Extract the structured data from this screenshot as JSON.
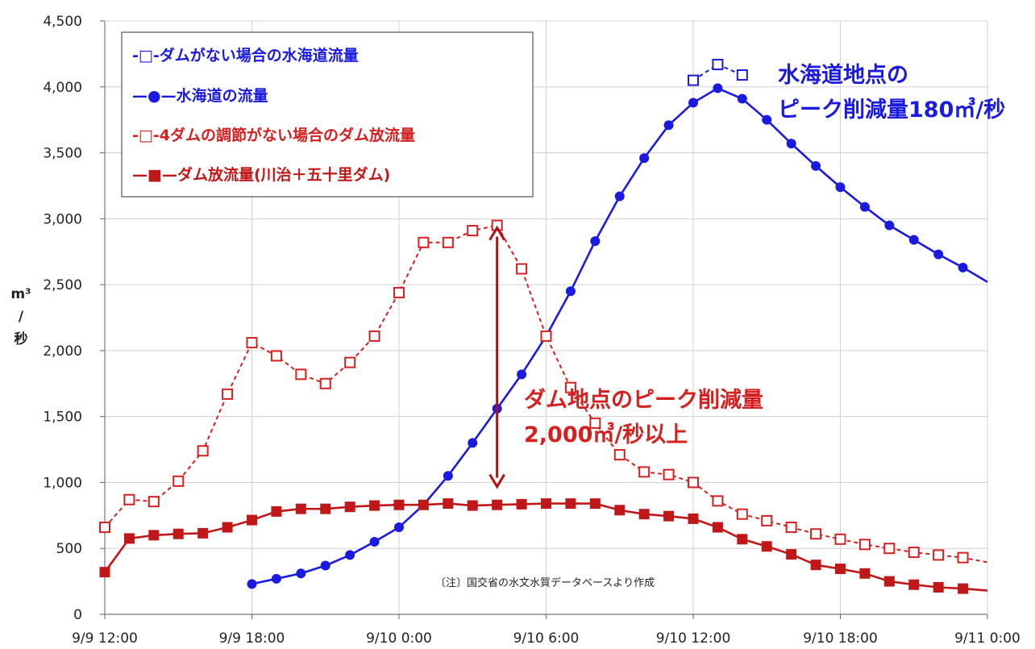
{
  "chart_data": {
    "type": "line",
    "ylabel_lines": [
      "m³",
      "/",
      "秒"
    ],
    "ylim": [
      0,
      4500
    ],
    "yticks": [
      0,
      500,
      1000,
      1500,
      2000,
      2500,
      3000,
      3500,
      4000,
      4500
    ],
    "ytick_labels": [
      "0",
      "500",
      "1,000",
      "1,500",
      "2,000",
      "2,500",
      "3,000",
      "3,500",
      "4,000",
      "4,500"
    ],
    "xlim": [
      "9/9 12:00",
      "9/11 0:00"
    ],
    "xtick_labels": [
      "9/9 12:00",
      "9/9 18:00",
      "9/10 0:00",
      "9/10 6:00",
      "9/10 12:00",
      "9/10 18:00",
      "9/11 0:00"
    ],
    "grid": true,
    "legend_position": "top-left",
    "series": [
      {
        "name": "ダムがない場合の水海道流量",
        "color": "#1a1ae0",
        "style": "dashed",
        "marker": "open-square",
        "x": [
          "9/10 12:00",
          "9/10 13:00",
          "9/10 14:00"
        ],
        "values": [
          4050,
          4170,
          4090
        ]
      },
      {
        "name": "水海道の流量",
        "color": "#1a1ae0",
        "style": "solid",
        "marker": "filled-circle",
        "x": [
          "9/9 18:00",
          "9/9 19:00",
          "9/9 20:00",
          "9/9 21:00",
          "9/9 22:00",
          "9/9 23:00",
          "9/10 0:00",
          "9/10 1:00",
          "9/10 2:00",
          "9/10 3:00",
          "9/10 4:00",
          "9/10 5:00",
          "9/10 6:00",
          "9/10 7:00",
          "9/10 8:00",
          "9/10 9:00",
          "9/10 10:00",
          "9/10 11:00",
          "9/10 12:00",
          "9/10 13:00",
          "9/10 14:00",
          "9/10 15:00",
          "9/10 16:00",
          "9/10 17:00",
          "9/10 18:00",
          "9/10 19:00",
          "9/10 20:00",
          "9/10 21:00",
          "9/10 22:00",
          "9/10 23:00",
          "9/11 0:00"
        ],
        "values": [
          230,
          270,
          310,
          370,
          450,
          550,
          660,
          830,
          1050,
          1300,
          1560,
          1820,
          2110,
          2450,
          2830,
          3170,
          3460,
          3710,
          3880,
          3990,
          3910,
          3750,
          3570,
          3400,
          3240,
          3090,
          2950,
          2840,
          2730,
          2630,
          2520
        ],
        "markers_until": "9/10 23:00"
      },
      {
        "name": "4ダムの調節がない場合のダム放流量",
        "color": "#d42020",
        "style": "dashed",
        "marker": "open-square",
        "x": [
          "9/9 12:00",
          "9/9 13:00",
          "9/9 14:00",
          "9/9 15:00",
          "9/9 16:00",
          "9/9 17:00",
          "9/9 18:00",
          "9/9 19:00",
          "9/9 20:00",
          "9/9 21:00",
          "9/9 22:00",
          "9/9 23:00",
          "9/10 0:00",
          "9/10 1:00",
          "9/10 2:00",
          "9/10 3:00",
          "9/10 4:00",
          "9/10 5:00",
          "9/10 6:00",
          "9/10 7:00",
          "9/10 8:00",
          "9/10 9:00",
          "9/10 10:00",
          "9/10 11:00",
          "9/10 12:00",
          "9/10 13:00",
          "9/10 14:00",
          "9/10 15:00",
          "9/10 16:00",
          "9/10 17:00",
          "9/10 18:00",
          "9/10 19:00",
          "9/10 20:00",
          "9/10 21:00",
          "9/10 22:00",
          "9/10 23:00",
          "9/11 0:00"
        ],
        "values": [
          660,
          870,
          855,
          1010,
          1240,
          1670,
          2060,
          1960,
          1820,
          1750,
          1910,
          2110,
          2440,
          2820,
          2820,
          2910,
          2950,
          2620,
          2110,
          1720,
          1450,
          1210,
          1080,
          1060,
          1000,
          860,
          760,
          710,
          660,
          610,
          570,
          530,
          500,
          470,
          450,
          430,
          395
        ],
        "markers_until": "9/10 23:00"
      },
      {
        "name": "ダム放流量(川治+五十里ダム)",
        "color": "#c01818",
        "style": "solid",
        "marker": "filled-square",
        "x": [
          "9/9 12:00",
          "9/9 13:00",
          "9/9 14:00",
          "9/9 15:00",
          "9/9 16:00",
          "9/9 17:00",
          "9/9 18:00",
          "9/9 19:00",
          "9/9 20:00",
          "9/9 21:00",
          "9/9 22:00",
          "9/9 23:00",
          "9/10 0:00",
          "9/10 1:00",
          "9/10 2:00",
          "9/10 3:00",
          "9/10 4:00",
          "9/10 5:00",
          "9/10 6:00",
          "9/10 7:00",
          "9/10 8:00",
          "9/10 9:00",
          "9/10 10:00",
          "9/10 11:00",
          "9/10 12:00",
          "9/10 13:00",
          "9/10 14:00",
          "9/10 15:00",
          "9/10 16:00",
          "9/10 17:00",
          "9/10 18:00",
          "9/10 19:00",
          "9/10 20:00",
          "9/10 21:00",
          "9/10 22:00",
          "9/10 23:00",
          "9/11 0:00"
        ],
        "values": [
          320,
          575,
          600,
          610,
          615,
          660,
          715,
          780,
          800,
          800,
          815,
          825,
          830,
          830,
          840,
          825,
          830,
          835,
          840,
          840,
          840,
          790,
          760,
          745,
          725,
          660,
          570,
          515,
          455,
          375,
          345,
          310,
          250,
          225,
          205,
          195,
          180
        ],
        "markers_until": "9/10 23:00"
      }
    ],
    "legend_labels": [
      "-□-ダムがない場合の水海道流量",
      "—●—水海道の流量",
      "-□-4ダムの調節がない場合のダム放流量",
      "—■—ダム放流量(川治＋五十里ダム)"
    ],
    "annotations": {
      "blue_line1": "水海道地点の",
      "blue_line2": "ピーク削減量180㎥/秒",
      "red_line1": "ダム地点のピーク削減量",
      "red_line2": "2,000㎥/秒以上",
      "note": "〔注〕国交省の水文水質データベースより作成",
      "arrow": {
        "x": "9/10 4:00",
        "from": 2950,
        "to": 950,
        "color": "#b01010"
      }
    }
  }
}
